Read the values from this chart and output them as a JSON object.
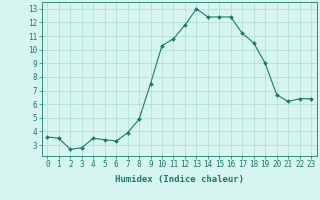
{
  "x": [
    0,
    1,
    2,
    3,
    4,
    5,
    6,
    7,
    8,
    9,
    10,
    11,
    12,
    13,
    14,
    15,
    16,
    17,
    18,
    19,
    20,
    21,
    22,
    23
  ],
  "y": [
    3.6,
    3.5,
    2.7,
    2.8,
    3.5,
    3.4,
    3.3,
    3.9,
    4.9,
    7.5,
    10.3,
    10.8,
    11.8,
    13.0,
    12.4,
    12.4,
    12.4,
    11.2,
    10.5,
    9.0,
    6.7,
    6.2,
    6.4,
    6.4
  ],
  "line_color": "#1a7a6a",
  "marker": "D",
  "marker_size": 2,
  "bg_color": "#d6f5f0",
  "grid_color": "#aaddcc",
  "xlabel": "Humidex (Indice chaleur)",
  "xlim": [
    -0.5,
    23.5
  ],
  "ylim": [
    2.2,
    13.5
  ],
  "yticks": [
    3,
    4,
    5,
    6,
    7,
    8,
    9,
    10,
    11,
    12,
    13
  ],
  "xticks": [
    0,
    1,
    2,
    3,
    4,
    5,
    6,
    7,
    8,
    9,
    10,
    11,
    12,
    13,
    14,
    15,
    16,
    17,
    18,
    19,
    20,
    21,
    22,
    23
  ],
  "tick_color": "#1a7a6a",
  "label_color": "#1a7a6a",
  "axis_color": "#1a7a6a",
  "tick_fontsize": 5.5,
  "xlabel_fontsize": 6.5
}
